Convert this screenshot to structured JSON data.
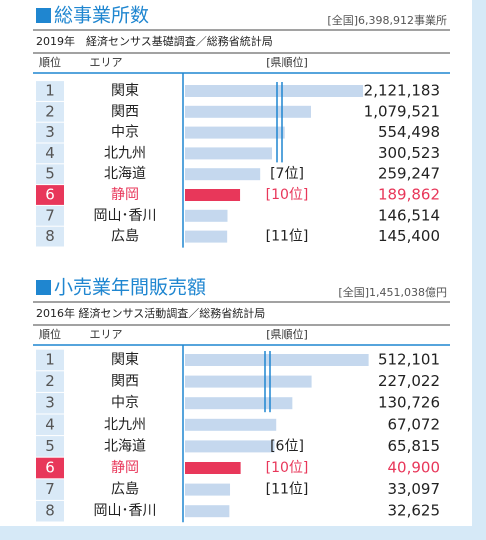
{
  "chart_data": [
    {
      "type": "bar",
      "title": "総事業所数",
      "total": "[全国]6,398,912事業所",
      "source": "2019年　経済センサス基礎調査／総務省統計局",
      "headers": [
        "順位",
        "エリア",
        "[県順位]"
      ],
      "ranks": [
        1,
        2,
        3,
        4,
        5,
        6,
        7,
        8
      ],
      "categories": [
        "関東",
        "関西",
        "中京",
        "北九州",
        "北海道",
        "静岡",
        "岡山･香川",
        "広島"
      ],
      "pref_ranks": [
        null,
        null,
        null,
        null,
        "[7位]",
        "[10位]",
        null,
        "[11位]"
      ],
      "values": [
        2121183,
        1079521,
        554498,
        300523,
        259247,
        189862,
        146514,
        145400
      ],
      "value_labels": [
        "2,121,183",
        "1,079,521",
        "554,498",
        "300,523",
        "259,247",
        "189,862",
        "146,514",
        "145,400"
      ],
      "colors": [
        "#c5d8ee",
        "#c5d8ee",
        "#c5d8ee",
        "#c5d8ee",
        "#c5d8ee",
        "#e8375a",
        "#c5d8ee",
        "#c5d8ee"
      ]
    },
    {
      "type": "bar",
      "title": "小売業年間販売額",
      "total": "[全国]1,451,038億円",
      "source": "2016年 経済センサス活動調査／総務省統計局",
      "headers": [
        "順位",
        "エリア",
        "[県順位]"
      ],
      "ranks": [
        1,
        2,
        3,
        4,
        5,
        6,
        7,
        8
      ],
      "categories": [
        "関東",
        "関西",
        "中京",
        "北九州",
        "北海道",
        "静岡",
        "広島",
        "岡山･香川"
      ],
      "pref_ranks": [
        null,
        null,
        null,
        null,
        "[6位]",
        "[10位]",
        "[11位]",
        null
      ],
      "values": [
        512101,
        227022,
        130726,
        67072,
        65815,
        40900,
        33097,
        32625
      ],
      "value_labels": [
        "512,101",
        "227,022",
        "130,726",
        "67,072",
        "65,815",
        "40,900",
        "33,097",
        "32,625"
      ],
      "colors": [
        "#c5d8ee",
        "#c5d8ee",
        "#c5d8ee",
        "#c5d8ee",
        "#c5d8ee",
        "#e8375a",
        "#c5d8ee",
        "#c5d8ee"
      ]
    }
  ]
}
